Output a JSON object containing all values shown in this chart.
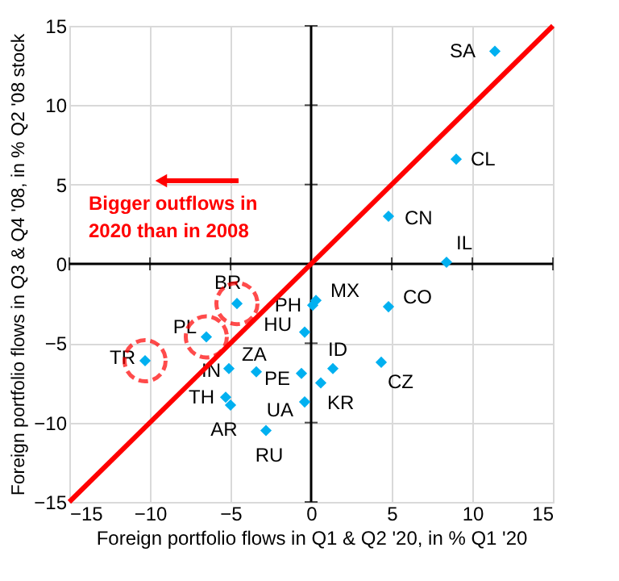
{
  "chart_data": {
    "type": "scatter",
    "xlabel": "Foreign portfolio flows in Q1 & Q2 '20, in % Q1 '20",
    "ylabel": "Foreign portfolio flows in Q3 & Q4 '08, in % Q2 '08 stock",
    "xlim": [
      -15,
      15
    ],
    "ylim": [
      -15,
      15
    ],
    "xticks": [
      -15,
      -10,
      -5,
      0,
      5,
      10,
      15
    ],
    "yticks": [
      -15,
      -10,
      -5,
      0,
      5,
      10,
      15
    ],
    "grid": true,
    "series": [
      {
        "marker": "diamond",
        "color": "#00b0f0",
        "x": [
          11.4,
          9.0,
          4.8,
          8.4,
          -4.6,
          0.3,
          0.1,
          4.8,
          -0.4,
          -6.5,
          -10.3,
          -5.1,
          -3.4,
          1.35,
          4.35,
          -0.6,
          0.6,
          -5.3,
          -5.0,
          -0.4,
          -2.8
        ],
        "values": [
          13.4,
          6.6,
          3.0,
          0.1,
          -2.5,
          -2.3,
          -2.6,
          -2.7,
          -4.3,
          -4.6,
          -6.1,
          -6.6,
          -6.8,
          -6.6,
          -6.2,
          -6.9,
          -7.5,
          -8.4,
          -8.9,
          -8.7,
          -10.5
        ],
        "value_labels": [
          "SA",
          "CL",
          "CN",
          "IL",
          "BR",
          "MX",
          "PH",
          "CO",
          "HU",
          "PL",
          "TR",
          "IN",
          "ZA",
          "ID",
          "CZ",
          "PE",
          "KR",
          "TH",
          "AR",
          "UA",
          "RU"
        ]
      },
      {
        "type": "line",
        "color": "#ff0000",
        "x": [
          -15,
          15
        ],
        "values": [
          -15,
          15
        ],
        "line_style": "solid"
      },
      {
        "type": "scatter",
        "marker": "circle",
        "color": "#ff0000",
        "line_style": "dashed",
        "x": [
          -10.3,
          -6.5,
          -4.6
        ],
        "values": [
          -6.1,
          -4.6,
          -2.5
        ]
      }
    ],
    "annotations": [
      "Bigger outflows in\n2020 than in 2008"
    ]
  }
}
